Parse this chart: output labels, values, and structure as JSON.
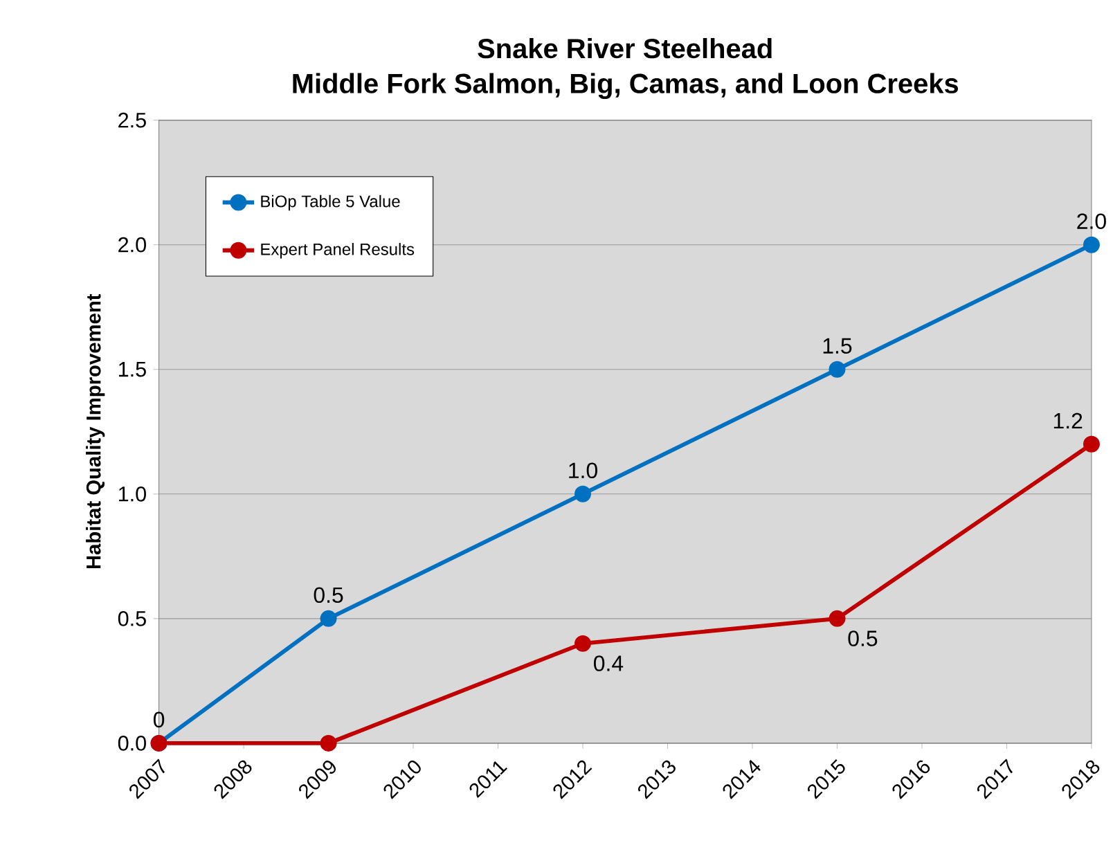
{
  "chart_data": {
    "type": "line",
    "title": "Snake River Steelhead",
    "subtitle": "Middle Fork Salmon, Big, Camas, and Loon Creeks",
    "ylabel": "Habitat Quality Improvement",
    "x": [
      2007,
      2009,
      2012,
      2015,
      2018
    ],
    "series": [
      {
        "name": "BiOp Table 5 Value",
        "color": "#0070c0",
        "values": [
          0,
          0.5,
          1.0,
          1.5,
          2.0
        ],
        "value_labels": [
          "0",
          "0.5",
          "1.0",
          "1.5",
          "2.0"
        ]
      },
      {
        "name": "Expert Panel Results",
        "color": "#c00000",
        "values": [
          0,
          0,
          0.4,
          0.5,
          1.2
        ],
        "value_labels": [
          null,
          null,
          "0.4",
          "0.5",
          "1.2"
        ]
      }
    ],
    "xlim": [
      2007,
      2018
    ],
    "xticks": [
      2007,
      2008,
      2009,
      2010,
      2011,
      2012,
      2013,
      2014,
      2015,
      2016,
      2017,
      2018
    ],
    "ylim": [
      0,
      2.5
    ],
    "yticks": [
      {
        "value": 0,
        "label": "0.0"
      },
      {
        "value": 0.5,
        "label": "0.5"
      },
      {
        "value": 1,
        "label": "1.0"
      },
      {
        "value": 1.5,
        "label": "1.5"
      },
      {
        "value": 2,
        "label": "2.0"
      },
      {
        "value": 2.5,
        "label": "2.5"
      }
    ],
    "grid": "y",
    "legend": "top left",
    "marker": "circle",
    "line_style": "solid"
  }
}
